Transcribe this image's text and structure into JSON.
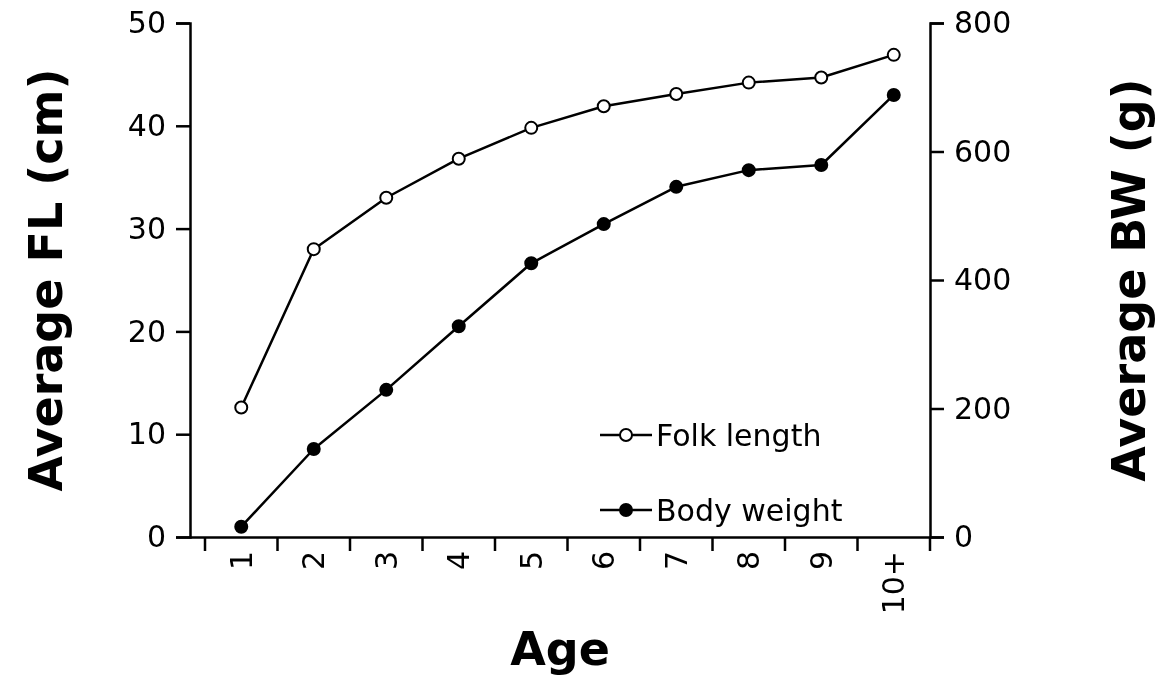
{
  "chart_data": {
    "type": "line",
    "xlabel": "Age",
    "ylabel": "Average FL (cm)",
    "y2label": "Average BW (g)",
    "categories": [
      "1",
      "2",
      "3",
      "4",
      "5",
      "6",
      "7",
      "8",
      "9",
      "10+"
    ],
    "ylim": [
      0,
      50
    ],
    "yticks": [
      0,
      10,
      20,
      30,
      40,
      50
    ],
    "y2lim": [
      0,
      800
    ],
    "y2ticks": [
      0,
      200,
      400,
      600,
      800
    ],
    "legend": "bottom right",
    "marker": "circle",
    "grid": false,
    "series": [
      {
        "name": "Folk length",
        "color": "#000000",
        "values": [
          12.6,
          28.0,
          33.0,
          36.8,
          39.8,
          41.9,
          43.1,
          44.2,
          44.7,
          46.9
        ]
      },
      {
        "name": "Body weight",
        "color": "#000000",
        "axis": "y2",
        "values": [
          16,
          137,
          229,
          328,
          426,
          487,
          545,
          571,
          579,
          688
        ]
      }
    ]
  }
}
